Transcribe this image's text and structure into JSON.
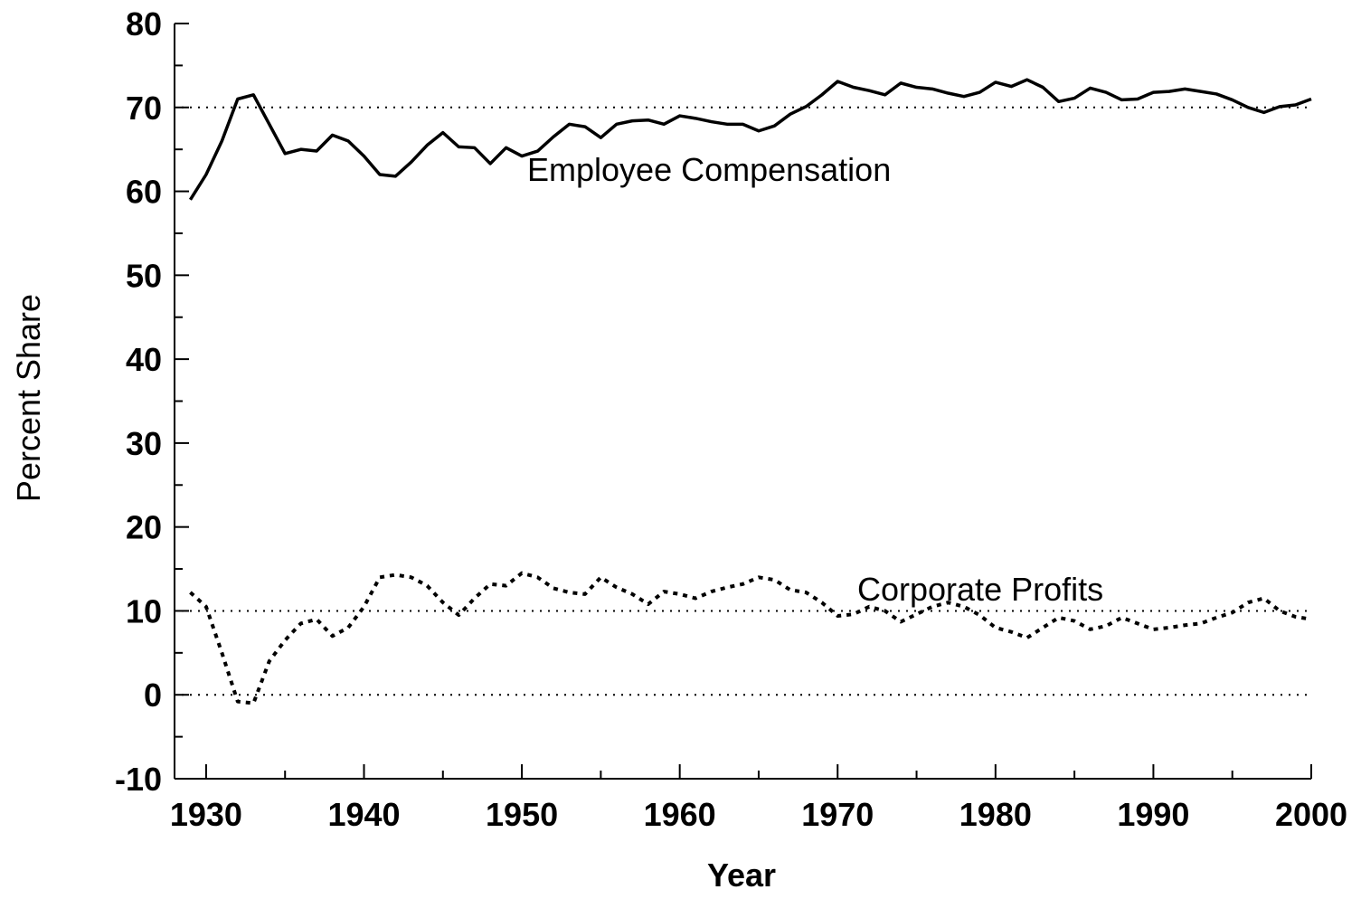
{
  "chart_data": {
    "type": "line",
    "xlabel": "Year",
    "ylabel": "Percent Share",
    "x": [
      1929,
      1930,
      1931,
      1932,
      1933,
      1934,
      1935,
      1936,
      1937,
      1938,
      1939,
      1940,
      1941,
      1942,
      1943,
      1944,
      1945,
      1946,
      1947,
      1948,
      1949,
      1950,
      1951,
      1952,
      1953,
      1954,
      1955,
      1956,
      1957,
      1958,
      1959,
      1960,
      1961,
      1962,
      1963,
      1964,
      1965,
      1966,
      1967,
      1968,
      1969,
      1970,
      1971,
      1972,
      1973,
      1974,
      1975,
      1976,
      1977,
      1978,
      1979,
      1980,
      1981,
      1982,
      1983,
      1984,
      1985,
      1986,
      1987,
      1988,
      1989,
      1990,
      1991,
      1992,
      1993,
      1994,
      1995,
      1996,
      1997,
      1998,
      1999,
      2000
    ],
    "series": [
      {
        "name": "Employee Compensation",
        "color": "#000000",
        "style": "solid",
        "values": [
          59,
          62,
          66,
          71,
          71.5,
          68,
          64.5,
          65,
          64.8,
          66.7,
          66,
          64.2,
          62,
          61.8,
          63.5,
          65.5,
          67,
          65.3,
          65.2,
          63.3,
          65.2,
          64.2,
          64.8,
          66.5,
          68,
          67.7,
          66.4,
          68,
          68.4,
          68.5,
          68,
          69,
          68.7,
          68.3,
          68,
          68,
          67.2,
          67.8,
          69.2,
          70.1,
          71.5,
          73.1,
          72.4,
          72,
          71.5,
          72.9,
          72.4,
          72.2,
          71.7,
          71.3,
          71.8,
          73,
          72.5,
          73.3,
          72.4,
          70.7,
          71.1,
          72.3,
          71.8,
          70.9,
          71,
          71.8,
          71.9,
          72.2,
          71.9,
          71.6,
          70.9,
          70,
          69.4,
          70.1,
          70.3,
          71
        ]
      },
      {
        "name": "Corporate Profits",
        "color": "#000000",
        "style": "dotted",
        "values": [
          12.2,
          10.5,
          5,
          -0.8,
          -1,
          4,
          6.5,
          8.5,
          9,
          7,
          8,
          10.5,
          14,
          14.3,
          14,
          13,
          11,
          9.5,
          11.5,
          13.2,
          13,
          14.5,
          14,
          12.7,
          12.2,
          12,
          14,
          12.8,
          12,
          10.8,
          12.3,
          12,
          11.5,
          12.3,
          12.8,
          13.2,
          14,
          13.7,
          12.5,
          12.2,
          11,
          9.4,
          9.6,
          10.5,
          10,
          8.7,
          9.6,
          10.5,
          11,
          10.5,
          9.5,
          8,
          7.5,
          6.8,
          8,
          9.2,
          8.8,
          7.8,
          8.2,
          9.2,
          8.5,
          7.8,
          8,
          8.3,
          8.5,
          9.2,
          9.8,
          11,
          11.5,
          10,
          9.3,
          9
        ]
      }
    ],
    "xlim": [
      1928,
      2000
    ],
    "xticks": [
      1930,
      1940,
      1950,
      1960,
      1970,
      1980,
      1990,
      2000
    ],
    "xminorticks": [
      1935,
      1945,
      1955,
      1965,
      1975,
      1985,
      1995
    ],
    "ylim": [
      -10,
      80
    ],
    "yticks": [
      -10,
      0,
      10,
      20,
      30,
      40,
      50,
      60,
      70,
      80
    ],
    "yminorticks": [
      -5,
      5,
      15,
      25,
      35,
      45,
      55,
      65,
      75
    ],
    "reference_lines": [
      70,
      10,
      0
    ]
  }
}
